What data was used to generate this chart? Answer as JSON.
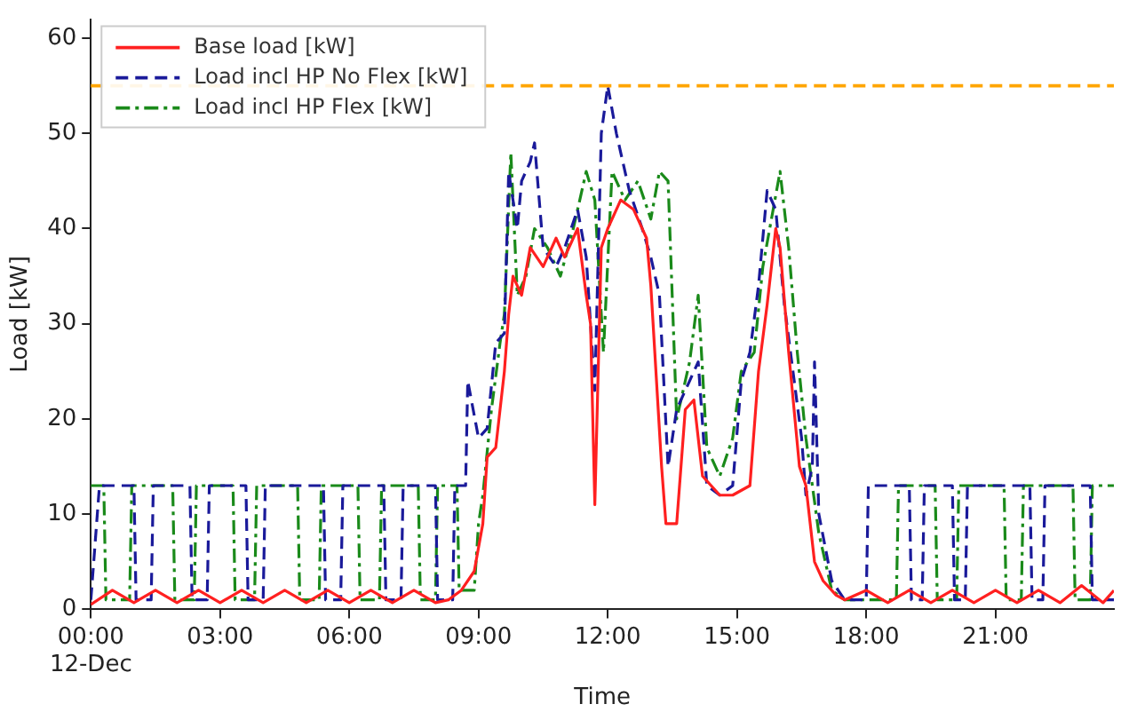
{
  "chart_data": {
    "type": "line",
    "xlabel": "Time",
    "ylabel": "Load [kW]",
    "xlim": [
      0,
      23.75
    ],
    "ylim": [
      0,
      62
    ],
    "xticks": [
      {
        "value": 0,
        "label": "00:00\n12-Dec"
      },
      {
        "value": 3,
        "label": "03:00"
      },
      {
        "value": 6,
        "label": "06:00"
      },
      {
        "value": 9,
        "label": "09:00"
      },
      {
        "value": 12,
        "label": "12:00"
      },
      {
        "value": 15,
        "label": "15:00"
      },
      {
        "value": 18,
        "label": "18:00"
      },
      {
        "value": 21,
        "label": "21:00"
      }
    ],
    "yticks": [
      0,
      10,
      20,
      30,
      40,
      50,
      60
    ],
    "grid": false,
    "legend": "top left",
    "marker": "none",
    "ref_lines": [
      {
        "axis": "y",
        "value": 55,
        "color": "#ffa500",
        "line_style": "dashed"
      }
    ],
    "series": [
      {
        "name": "Base load [kW]",
        "color": "#ff2020",
        "line_style": "solid",
        "x": [
          0,
          0.5,
          1,
          1.5,
          2,
          2.5,
          3,
          3.5,
          4,
          4.5,
          5,
          5.5,
          6,
          6.5,
          7,
          7.5,
          8,
          8.3,
          8.6,
          8.9,
          9.1,
          9.2,
          9.4,
          9.6,
          9.7,
          9.8,
          10.0,
          10.2,
          10.5,
          10.8,
          11.0,
          11.3,
          11.5,
          11.6,
          11.7,
          11.85,
          12.0,
          12.3,
          12.6,
          12.9,
          13.0,
          13.25,
          13.35,
          13.6,
          13.8,
          14.0,
          14.2,
          14.6,
          14.9,
          15.3,
          15.5,
          15.7,
          15.9,
          16.0,
          16.2,
          16.45,
          16.6,
          16.8,
          17.0,
          17.3,
          17.5,
          18.0,
          18.5,
          19.0,
          19.5,
          20.0,
          20.5,
          21.0,
          21.5,
          22.0,
          22.5,
          23.0,
          23.5,
          23.75
        ],
        "values": [
          0.5,
          2,
          0.7,
          2,
          0.7,
          2,
          0.7,
          2,
          0.7,
          2,
          0.7,
          2,
          0.7,
          2,
          0.7,
          2,
          0.7,
          1,
          2,
          4,
          9,
          16,
          17,
          25,
          31,
          35,
          33,
          38,
          36,
          39,
          37,
          40,
          33,
          30,
          11,
          38,
          40,
          43,
          42,
          39,
          34,
          15,
          9,
          9,
          21,
          22,
          14,
          12,
          12,
          13,
          25,
          32,
          40,
          38,
          27,
          15,
          13,
          5,
          3,
          1.5,
          1,
          2,
          0.7,
          2,
          0.7,
          2,
          0.7,
          2,
          0.7,
          2,
          0.7,
          2.5,
          0.7,
          2
        ]
      },
      {
        "name": "Load incl HP No Flex [kW]",
        "color": "#1a1a9a",
        "line_style": "dashed",
        "x": [
          0,
          0.2,
          1.0,
          1.05,
          1.4,
          1.45,
          2.3,
          2.35,
          2.7,
          2.75,
          3.6,
          3.65,
          4.0,
          4.05,
          5.4,
          5.45,
          5.8,
          5.85,
          6.8,
          6.85,
          7.2,
          7.25,
          8.0,
          8.05,
          8.4,
          8.45,
          8.7,
          8.75,
          9.0,
          9.2,
          9.4,
          9.6,
          9.7,
          9.9,
          10.0,
          10.2,
          10.3,
          10.5,
          10.8,
          11.0,
          11.3,
          11.5,
          11.7,
          11.85,
          12.0,
          12.2,
          12.5,
          12.8,
          13.0,
          13.2,
          13.4,
          13.6,
          13.9,
          14.1,
          14.3,
          14.6,
          14.9,
          15.1,
          15.3,
          15.5,
          15.7,
          15.9,
          16.1,
          16.3,
          16.5,
          16.6,
          16.75,
          16.8,
          16.9,
          17.2,
          17.5,
          18.0,
          18.05,
          19.0,
          19.05,
          19.3,
          19.35,
          20.0,
          20.05,
          20.3,
          20.35,
          21.8,
          21.85,
          22.1,
          22.15,
          23.2,
          23.25,
          23.75
        ],
        "values": [
          1,
          13,
          13,
          1,
          1,
          13,
          13,
          1,
          1,
          13,
          13,
          1,
          1,
          13,
          13,
          1,
          1,
          13,
          13,
          1,
          1,
          13,
          13,
          1,
          1,
          13,
          13,
          24,
          18,
          19,
          28,
          29,
          46,
          40,
          45,
          47,
          49,
          38,
          36,
          38,
          42,
          37,
          23,
          50,
          55,
          50,
          44,
          40,
          37,
          33,
          15,
          21,
          24,
          26,
          13,
          12,
          13,
          24,
          27,
          34,
          44,
          42,
          32,
          25,
          18,
          12,
          15,
          26,
          10,
          3,
          1,
          1,
          13,
          13,
          1,
          1,
          13,
          13,
          1,
          1,
          13,
          13,
          1,
          1,
          13,
          13,
          1,
          1
        ]
      },
      {
        "name": "Load incl HP Flex [kW]",
        "color": "#1a8a1a",
        "line_style": "dashdot",
        "x": [
          0,
          0.3,
          0.35,
          0.9,
          0.95,
          1.9,
          1.95,
          2.4,
          2.45,
          3.3,
          3.35,
          3.8,
          3.85,
          4.8,
          4.85,
          5.3,
          5.35,
          6.2,
          6.25,
          6.7,
          6.75,
          7.6,
          7.65,
          8.0,
          8.05,
          8.5,
          8.55,
          8.9,
          9.0,
          9.1,
          9.3,
          9.5,
          9.6,
          9.75,
          9.9,
          10.1,
          10.3,
          10.6,
          10.9,
          11.2,
          11.5,
          11.7,
          11.9,
          12.1,
          12.4,
          12.7,
          13.0,
          13.2,
          13.4,
          13.6,
          13.9,
          14.1,
          14.3,
          14.6,
          14.9,
          15.1,
          15.4,
          15.6,
          15.8,
          16.0,
          16.2,
          16.4,
          16.6,
          16.9,
          17.2,
          17.5,
          18.0,
          18.7,
          18.75,
          19.6,
          19.65,
          20.1,
          20.15,
          21.2,
          21.25,
          21.6,
          21.65,
          22.8,
          22.85,
          23.2,
          23.25,
          23.75
        ],
        "values": [
          13,
          13,
          1,
          1,
          13,
          13,
          1,
          1,
          13,
          13,
          1,
          1,
          13,
          13,
          1,
          1,
          13,
          13,
          1,
          1,
          13,
          13,
          1,
          1,
          13,
          13,
          2,
          2,
          9,
          12,
          21,
          28,
          31,
          48,
          33,
          35,
          40,
          38,
          35,
          40,
          46,
          43,
          27,
          46,
          43,
          45,
          41,
          46,
          45,
          20,
          26,
          33,
          17,
          14,
          18,
          25,
          27,
          36,
          41,
          46,
          38,
          27,
          18,
          8,
          2,
          1,
          1,
          1,
          13,
          13,
          1,
          1,
          13,
          13,
          1,
          1,
          13,
          13,
          1,
          1,
          13,
          13
        ]
      }
    ]
  }
}
